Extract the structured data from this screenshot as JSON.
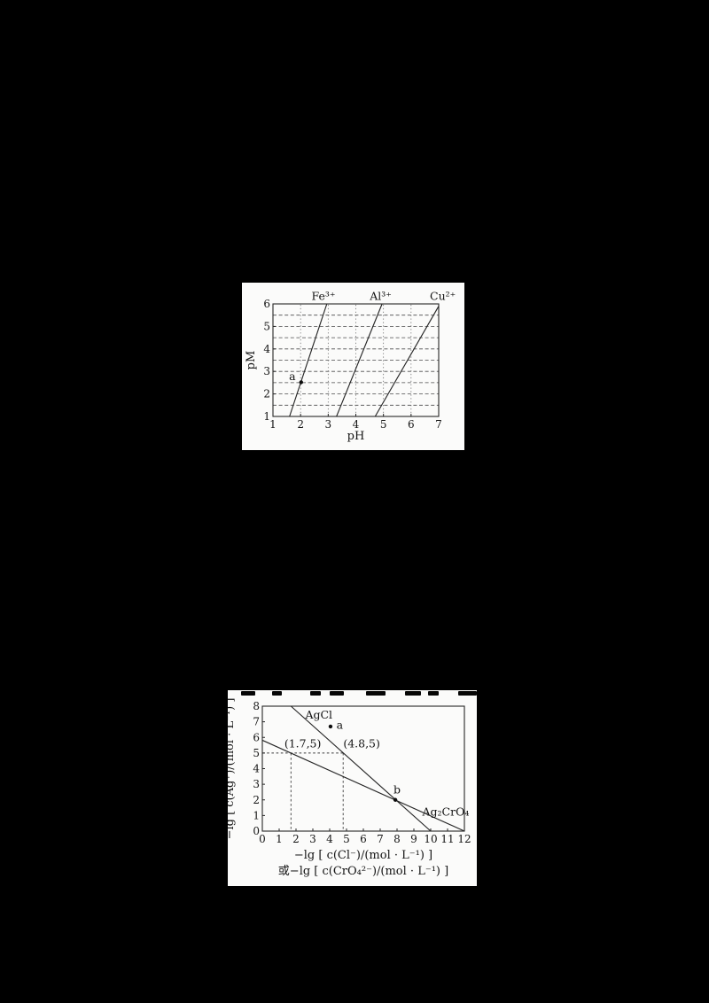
{
  "page": {
    "background": "#000000",
    "paper": "#fbfbfa",
    "ink": "#262626"
  },
  "charts": [
    {
      "name": "metal-hydroxide-precipitation-chart",
      "chart_data": {
        "type": "line",
        "title": "",
        "xlabel": "pH",
        "ylabel": "pM",
        "xlim": [
          1,
          7
        ],
        "ylim": [
          1,
          6
        ],
        "xticks": [
          1,
          2,
          3,
          4,
          5,
          6,
          7
        ],
        "yticks": [
          1,
          2,
          3,
          4,
          5,
          6
        ],
        "grid": {
          "h_dashed": [
            1.5,
            2,
            2.5,
            3,
            3.5,
            4,
            4.5,
            5,
            5.5
          ],
          "v_dotted": [
            2,
            3,
            4,
            5,
            6
          ]
        },
        "series": [
          {
            "name": "Fe3+",
            "label": "Fe³⁺",
            "points": [
              [
                1.6,
                1
              ],
              [
                2.95,
                6
              ]
            ]
          },
          {
            "name": "Al3+",
            "label": "Al³⁺",
            "points": [
              [
                3.3,
                1
              ],
              [
                4.95,
                6
              ]
            ]
          },
          {
            "name": "Cu2+",
            "label": "Cu²⁺",
            "points": [
              [
                4.7,
                1
              ],
              [
                7,
                5.9
              ]
            ]
          }
        ],
        "markers": [
          {
            "name": "a",
            "x": 2.02,
            "y": 2.52
          }
        ],
        "annotations": [
          {
            "text": "Fe³⁺",
            "x": 2.83,
            "y": 6.18,
            "anchor": "middle"
          },
          {
            "text": "Al³⁺",
            "x": 4.9,
            "y": 6.18,
            "anchor": "middle"
          },
          {
            "text": "Cu²⁺",
            "x": 7.15,
            "y": 6.18,
            "anchor": "middle"
          },
          {
            "text": "a",
            "x": 1.7,
            "y": 2.62,
            "anchor": "middle"
          }
        ],
        "legend": "none"
      }
    },
    {
      "name": "silver-salt-solubility-chart",
      "chart_data": {
        "type": "line",
        "title": "",
        "xlabel": "−lg [ c(Cl⁻)/(mol · L⁻¹) ]",
        "xlabel2": "或−lg [ c(CrO₄²⁻)/(mol · L⁻¹) ]",
        "ylabel": "−lg [ c(Ag⁺)/(mol · L⁻¹) ]",
        "xlim": [
          0,
          12
        ],
        "ylim": [
          0,
          8
        ],
        "xticks": [
          0,
          1,
          2,
          3,
          4,
          5,
          6,
          7,
          8,
          9,
          10,
          11,
          12
        ],
        "yticks": [
          0,
          1,
          2,
          3,
          4,
          5,
          6,
          7,
          8
        ],
        "series": [
          {
            "name": "AgCl",
            "label": "AgCl",
            "points": [
              [
                1.7,
                8
              ],
              [
                10,
                0
              ]
            ]
          },
          {
            "name": "Ag2CrO4",
            "label": "Ag₂CrO₄",
            "points": [
              [
                0,
                5.82
              ],
              [
                12,
                0
              ]
            ]
          }
        ],
        "dashed_lines": [
          [
            [
              0,
              5
            ],
            [
              4.8,
              5
            ]
          ],
          [
            [
              1.7,
              5
            ],
            [
              1.7,
              0
            ]
          ],
          [
            [
              4.8,
              5
            ],
            [
              4.8,
              0
            ]
          ]
        ],
        "markers": [
          {
            "name": "a",
            "x": 4.05,
            "y": 6.7
          },
          {
            "name": "b",
            "x": 7.9,
            "y": 2.0
          }
        ],
        "annotations": [
          {
            "text": "AgCl",
            "x": 2.55,
            "y": 7.2,
            "anchor": "start"
          },
          {
            "text": "Ag₂CrO₄",
            "x": 9.5,
            "y": 1.0,
            "anchor": "start"
          },
          {
            "text": "(1.7,5)",
            "x": 2.4,
            "y": 5.35,
            "anchor": "middle"
          },
          {
            "text": "(4.8,5)",
            "x": 5.9,
            "y": 5.35,
            "anchor": "middle"
          },
          {
            "text": "a",
            "x": 4.4,
            "y": 6.55,
            "anchor": "start"
          },
          {
            "text": "b",
            "x": 8.0,
            "y": 2.42,
            "anchor": "middle"
          }
        ],
        "legend": "none"
      }
    }
  ]
}
